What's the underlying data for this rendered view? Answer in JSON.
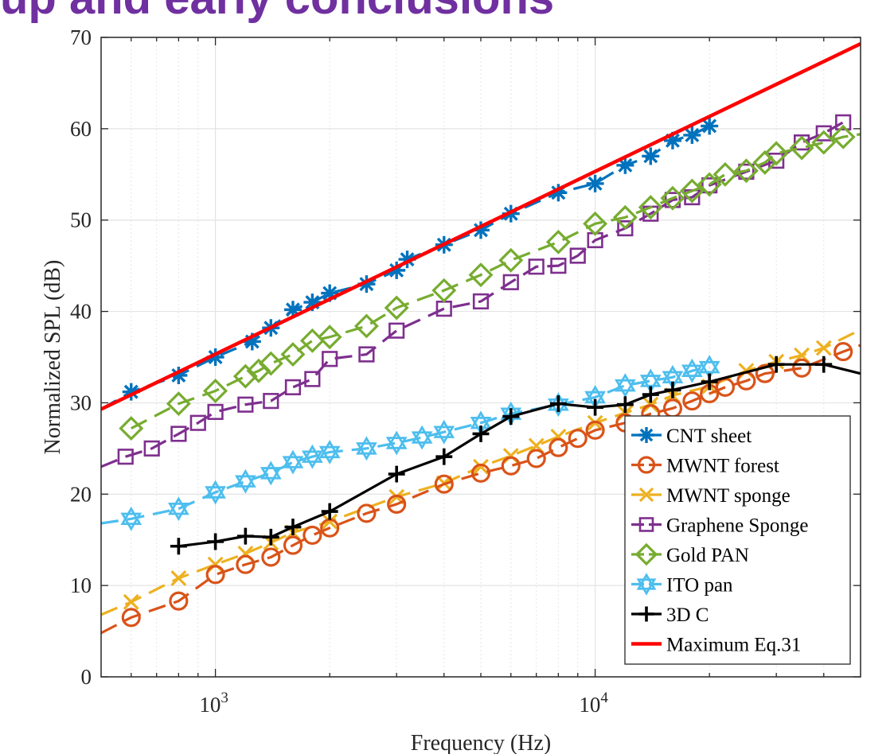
{
  "slide": {
    "title": "up and early conclusions"
  },
  "chart_data": {
    "type": "line",
    "xlabel": "Frequency (Hz)",
    "ylabel": "Normalized SPL (dB)",
    "xscale": "log",
    "xlim": [
      500,
      50000
    ],
    "ylim": [
      0,
      70
    ],
    "yticks": [
      0,
      10,
      20,
      30,
      40,
      50,
      60,
      70
    ],
    "xticks": [
      1000,
      10000
    ],
    "xtick_labels": [
      {
        "base": "10",
        "exp": "3"
      },
      {
        "base": "10",
        "exp": "4"
      }
    ],
    "grid": true,
    "legend_position": "bottom-right",
    "series": [
      {
        "name": "CNT sheet",
        "color": "#0072BD",
        "marker": "asterisk",
        "linestyle": "dashed",
        "x": [
          500,
          600,
          800,
          1000,
          1250,
          1400,
          1600,
          1800,
          2000,
          2500,
          3000,
          3200,
          4000,
          5000,
          6000,
          8000,
          10000,
          12000,
          14000,
          16000,
          18000,
          20000
        ],
        "y": [
          29.3,
          31.2,
          33.0,
          35.0,
          36.7,
          38.2,
          40.2,
          41.0,
          42.0,
          43.0,
          44.5,
          45.7,
          47.3,
          48.9,
          50.7,
          53.0,
          54.0,
          56.0,
          57.0,
          58.7,
          59.3,
          60.3
        ]
      },
      {
        "name": "MWNT forest",
        "color": "#D95319",
        "marker": "circle",
        "linestyle": "dashed",
        "x": [
          500,
          600,
          800,
          1000,
          1200,
          1400,
          1600,
          1800,
          2000,
          2500,
          3000,
          4000,
          5000,
          6000,
          7000,
          8000,
          9000,
          10000,
          12000,
          14000,
          16000,
          18000,
          20000,
          22000,
          25000,
          28000,
          35000,
          45000,
          50000
        ],
        "y": [
          4.8,
          6.5,
          8.3,
          11.2,
          12.3,
          13.1,
          14.4,
          15.5,
          16.3,
          17.9,
          18.9,
          21.1,
          22.3,
          23.1,
          23.9,
          25.1,
          26.1,
          27.0,
          27.8,
          28.8,
          29.4,
          30.2,
          31.0,
          31.7,
          32.4,
          33.2,
          33.8,
          35.6,
          36.3
        ]
      },
      {
        "name": "MWNT sponge",
        "color": "#EDB120",
        "marker": "x",
        "linestyle": "dashed",
        "x": [
          500,
          600,
          800,
          1000,
          1200,
          1400,
          1600,
          2000,
          3000,
          4000,
          5000,
          6000,
          7000,
          8000,
          10000,
          12000,
          14000,
          16000,
          20000,
          25000,
          30000,
          35000,
          40000,
          50000
        ],
        "y": [
          6.8,
          8.2,
          10.8,
          12.3,
          13.5,
          14.7,
          15.8,
          17.0,
          19.7,
          21.2,
          23.0,
          24.2,
          25.3,
          26.3,
          27.8,
          28.9,
          29.8,
          30.8,
          31.8,
          33.5,
          34.5,
          35.2,
          36.0,
          38.0
        ]
      },
      {
        "name": "Graphene Sponge",
        "color": "#7E2F8E",
        "marker": "square",
        "linestyle": "dashed",
        "x": [
          500,
          580,
          680,
          800,
          900,
          1000,
          1200,
          1400,
          1600,
          1800,
          2000,
          2500,
          3000,
          4000,
          5000,
          6000,
          7000,
          8000,
          9000,
          10000,
          12000,
          14000,
          16000,
          18000,
          20000,
          25000,
          30000,
          35000,
          40000,
          45000
        ],
        "y": [
          23.0,
          24.1,
          25.0,
          26.6,
          27.8,
          29.0,
          29.8,
          30.2,
          31.7,
          32.6,
          34.8,
          35.3,
          37.9,
          40.3,
          41.1,
          43.2,
          44.9,
          45.0,
          46.1,
          47.8,
          49.1,
          50.7,
          52.2,
          52.5,
          53.8,
          55.3,
          56.5,
          58.5,
          59.5,
          60.7
        ]
      },
      {
        "name": "Gold PAN",
        "color": "#77AC30",
        "marker": "diamond",
        "linestyle": "dashed",
        "x": [
          600,
          800,
          1000,
          1200,
          1300,
          1400,
          1600,
          1800,
          2000,
          2500,
          3000,
          4000,
          5000,
          6000,
          8000,
          10000,
          12000,
          14000,
          16000,
          18000,
          20000,
          22000,
          25000,
          28000,
          30000,
          35000,
          40000,
          45000,
          50000
        ],
        "y": [
          27.2,
          29.9,
          31.3,
          32.9,
          33.5,
          34.3,
          35.3,
          36.8,
          37.2,
          38.4,
          40.4,
          42.3,
          44.0,
          45.6,
          47.6,
          49.6,
          50.3,
          51.4,
          52.4,
          53.2,
          53.9,
          55.0,
          55.4,
          56.3,
          57.3,
          57.9,
          58.5,
          59.1,
          59.4
        ]
      },
      {
        "name": "ITO pan",
        "color": "#4DBEEE",
        "marker": "hexagram",
        "linestyle": "dashed",
        "x": [
          500,
          600,
          800,
          1000,
          1200,
          1400,
          1600,
          1800,
          2000,
          2500,
          3000,
          3500,
          4000,
          5000,
          6000,
          8000,
          10000,
          12000,
          14000,
          16000,
          18000,
          20000
        ],
        "y": [
          16.8,
          17.3,
          18.4,
          20.2,
          21.4,
          22.3,
          23.5,
          24.1,
          24.6,
          25.0,
          25.6,
          26.2,
          26.8,
          27.8,
          28.8,
          29.8,
          30.6,
          31.9,
          32.4,
          32.8,
          33.5,
          33.9
        ]
      },
      {
        "name": "3D C",
        "color": "#000000",
        "marker": "plus",
        "linestyle": "solid",
        "x": [
          800,
          1000,
          1200,
          1400,
          1600,
          2000,
          3000,
          4000,
          5000,
          6000,
          8000,
          10000,
          12000,
          14000,
          16000,
          20000,
          30000,
          40000,
          50000
        ],
        "y": [
          14.3,
          14.8,
          15.4,
          15.3,
          16.4,
          18.1,
          22.2,
          24.1,
          26.6,
          28.5,
          29.9,
          29.5,
          29.8,
          30.9,
          31.4,
          32.3,
          34.2,
          34.2,
          33.2
        ]
      },
      {
        "name": "Maximum Eq.31",
        "color": "#FF0000",
        "marker": "none",
        "linestyle": "solid",
        "x": [
          500,
          50000
        ],
        "y": [
          29.3,
          69.3
        ]
      }
    ]
  }
}
